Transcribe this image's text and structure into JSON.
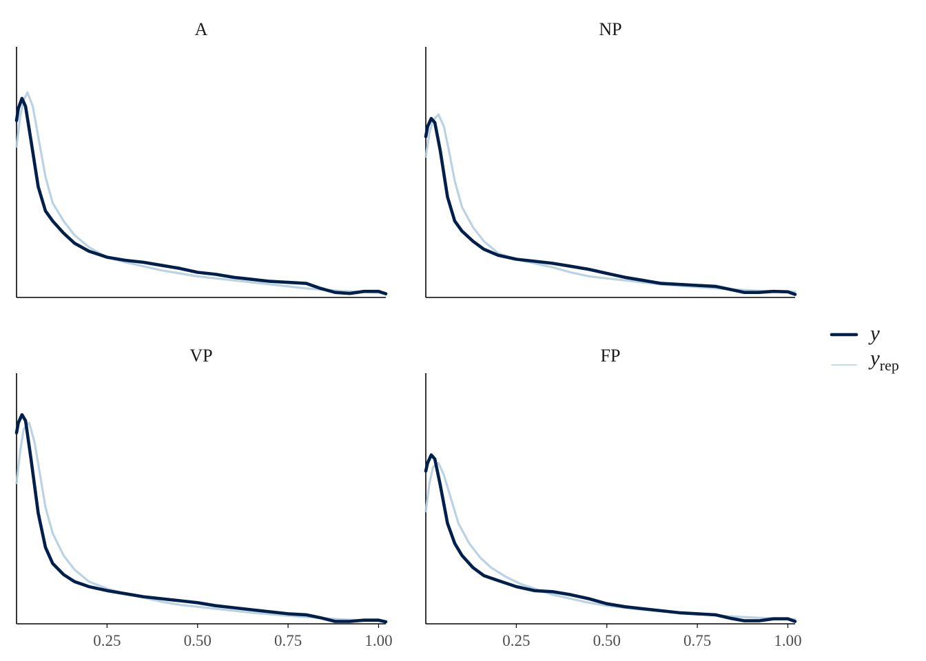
{
  "chart_data": {
    "type": "line",
    "colors": {
      "y": "#011f4b",
      "y_rep": "#b3cde0"
    },
    "legend": {
      "position": "right",
      "entries": [
        {
          "key": "y",
          "label": "y",
          "sub": ""
        },
        {
          "key": "y_rep",
          "label": "y",
          "sub": "rep"
        }
      ]
    },
    "xlim": [
      0,
      1.02
    ],
    "x_ticks": [
      "0.25",
      "0.50",
      "0.75",
      "1.00"
    ],
    "x_tick_values": [
      0.25,
      0.5,
      0.75,
      1.0
    ],
    "panels": [
      {
        "title": "A",
        "ylim": [
          0,
          1
        ],
        "y": [
          [
            0,
            0.88
          ],
          [
            0.005,
            0.94
          ],
          [
            0.015,
            0.99
          ],
          [
            0.025,
            0.95
          ],
          [
            0.04,
            0.78
          ],
          [
            0.06,
            0.55
          ],
          [
            0.08,
            0.43
          ],
          [
            0.1,
            0.38
          ],
          [
            0.13,
            0.32
          ],
          [
            0.16,
            0.27
          ],
          [
            0.2,
            0.23
          ],
          [
            0.25,
            0.2
          ],
          [
            0.3,
            0.185
          ],
          [
            0.35,
            0.175
          ],
          [
            0.4,
            0.16
          ],
          [
            0.45,
            0.145
          ],
          [
            0.5,
            0.125
          ],
          [
            0.55,
            0.115
          ],
          [
            0.6,
            0.1
          ],
          [
            0.65,
            0.09
          ],
          [
            0.7,
            0.08
          ],
          [
            0.75,
            0.075
          ],
          [
            0.8,
            0.07
          ],
          [
            0.84,
            0.045
          ],
          [
            0.88,
            0.025
          ],
          [
            0.92,
            0.02
          ],
          [
            0.96,
            0.03
          ],
          [
            1.0,
            0.03
          ],
          [
            1.02,
            0.018
          ]
        ],
        "y_rep": [
          [
            0,
            0.75
          ],
          [
            0.01,
            0.9
          ],
          [
            0.02,
            0.98
          ],
          [
            0.03,
            1.02
          ],
          [
            0.045,
            0.95
          ],
          [
            0.06,
            0.8
          ],
          [
            0.08,
            0.6
          ],
          [
            0.1,
            0.47
          ],
          [
            0.13,
            0.38
          ],
          [
            0.16,
            0.31
          ],
          [
            0.2,
            0.25
          ],
          [
            0.25,
            0.2
          ],
          [
            0.3,
            0.175
          ],
          [
            0.35,
            0.155
          ],
          [
            0.4,
            0.135
          ],
          [
            0.45,
            0.12
          ],
          [
            0.5,
            0.105
          ],
          [
            0.55,
            0.095
          ],
          [
            0.6,
            0.085
          ],
          [
            0.65,
            0.075
          ],
          [
            0.7,
            0.065
          ],
          [
            0.75,
            0.055
          ],
          [
            0.8,
            0.045
          ],
          [
            0.85,
            0.038
          ],
          [
            0.9,
            0.032
          ],
          [
            0.95,
            0.028
          ],
          [
            1.0,
            0.024
          ],
          [
            1.02,
            0.022
          ]
        ]
      },
      {
        "title": "NP",
        "ylim": [
          0,
          1
        ],
        "y": [
          [
            0,
            0.8
          ],
          [
            0.005,
            0.85
          ],
          [
            0.015,
            0.89
          ],
          [
            0.025,
            0.87
          ],
          [
            0.04,
            0.73
          ],
          [
            0.06,
            0.5
          ],
          [
            0.08,
            0.38
          ],
          [
            0.1,
            0.33
          ],
          [
            0.13,
            0.28
          ],
          [
            0.16,
            0.24
          ],
          [
            0.2,
            0.21
          ],
          [
            0.25,
            0.19
          ],
          [
            0.3,
            0.18
          ],
          [
            0.35,
            0.17
          ],
          [
            0.4,
            0.155
          ],
          [
            0.45,
            0.14
          ],
          [
            0.5,
            0.12
          ],
          [
            0.55,
            0.1
          ],
          [
            0.6,
            0.085
          ],
          [
            0.65,
            0.07
          ],
          [
            0.7,
            0.065
          ],
          [
            0.75,
            0.06
          ],
          [
            0.8,
            0.055
          ],
          [
            0.84,
            0.04
          ],
          [
            0.88,
            0.025
          ],
          [
            0.92,
            0.025
          ],
          [
            0.96,
            0.03
          ],
          [
            1.0,
            0.028
          ],
          [
            1.02,
            0.015
          ]
        ],
        "y_rep": [
          [
            0,
            0.7
          ],
          [
            0.01,
            0.82
          ],
          [
            0.02,
            0.88
          ],
          [
            0.035,
            0.91
          ],
          [
            0.05,
            0.85
          ],
          [
            0.065,
            0.72
          ],
          [
            0.08,
            0.58
          ],
          [
            0.1,
            0.45
          ],
          [
            0.13,
            0.35
          ],
          [
            0.16,
            0.28
          ],
          [
            0.2,
            0.22
          ],
          [
            0.25,
            0.19
          ],
          [
            0.3,
            0.17
          ],
          [
            0.35,
            0.15
          ],
          [
            0.4,
            0.125
          ],
          [
            0.45,
            0.105
          ],
          [
            0.5,
            0.095
          ],
          [
            0.55,
            0.085
          ],
          [
            0.6,
            0.075
          ],
          [
            0.65,
            0.065
          ],
          [
            0.7,
            0.058
          ],
          [
            0.75,
            0.052
          ],
          [
            0.8,
            0.046
          ],
          [
            0.85,
            0.04
          ],
          [
            0.9,
            0.035
          ],
          [
            0.95,
            0.032
          ],
          [
            1.0,
            0.03
          ],
          [
            1.02,
            0.028
          ]
        ]
      },
      {
        "title": "VP",
        "ylim": [
          0,
          1
        ],
        "y": [
          [
            0,
            0.95
          ],
          [
            0.005,
            1.0
          ],
          [
            0.015,
            1.04
          ],
          [
            0.025,
            1.01
          ],
          [
            0.04,
            0.82
          ],
          [
            0.06,
            0.55
          ],
          [
            0.08,
            0.38
          ],
          [
            0.1,
            0.3
          ],
          [
            0.13,
            0.245
          ],
          [
            0.16,
            0.21
          ],
          [
            0.2,
            0.185
          ],
          [
            0.25,
            0.165
          ],
          [
            0.3,
            0.15
          ],
          [
            0.35,
            0.135
          ],
          [
            0.4,
            0.125
          ],
          [
            0.45,
            0.115
          ],
          [
            0.5,
            0.105
          ],
          [
            0.55,
            0.09
          ],
          [
            0.6,
            0.08
          ],
          [
            0.65,
            0.07
          ],
          [
            0.7,
            0.06
          ],
          [
            0.75,
            0.05
          ],
          [
            0.8,
            0.045
          ],
          [
            0.84,
            0.03
          ],
          [
            0.88,
            0.012
          ],
          [
            0.92,
            0.012
          ],
          [
            0.96,
            0.018
          ],
          [
            1.0,
            0.018
          ],
          [
            1.02,
            0.01
          ]
        ],
        "y_rep": [
          [
            0,
            0.7
          ],
          [
            0.01,
            0.86
          ],
          [
            0.02,
            0.97
          ],
          [
            0.035,
            1.0
          ],
          [
            0.05,
            0.9
          ],
          [
            0.065,
            0.74
          ],
          [
            0.08,
            0.58
          ],
          [
            0.1,
            0.45
          ],
          [
            0.13,
            0.34
          ],
          [
            0.16,
            0.27
          ],
          [
            0.2,
            0.21
          ],
          [
            0.25,
            0.175
          ],
          [
            0.3,
            0.15
          ],
          [
            0.35,
            0.13
          ],
          [
            0.4,
            0.11
          ],
          [
            0.45,
            0.095
          ],
          [
            0.5,
            0.085
          ],
          [
            0.55,
            0.075
          ],
          [
            0.6,
            0.065
          ],
          [
            0.65,
            0.055
          ],
          [
            0.7,
            0.048
          ],
          [
            0.75,
            0.04
          ],
          [
            0.8,
            0.034
          ],
          [
            0.85,
            0.028
          ],
          [
            0.9,
            0.022
          ],
          [
            0.95,
            0.018
          ],
          [
            1.0,
            0.015
          ],
          [
            1.02,
            0.013
          ]
        ]
      },
      {
        "title": "FP",
        "ylim": [
          0,
          1
        ],
        "y": [
          [
            0,
            0.76
          ],
          [
            0.005,
            0.8
          ],
          [
            0.015,
            0.84
          ],
          [
            0.025,
            0.82
          ],
          [
            0.04,
            0.69
          ],
          [
            0.06,
            0.5
          ],
          [
            0.08,
            0.4
          ],
          [
            0.1,
            0.34
          ],
          [
            0.13,
            0.28
          ],
          [
            0.16,
            0.24
          ],
          [
            0.2,
            0.215
          ],
          [
            0.25,
            0.185
          ],
          [
            0.3,
            0.165
          ],
          [
            0.35,
            0.16
          ],
          [
            0.4,
            0.145
          ],
          [
            0.45,
            0.125
          ],
          [
            0.5,
            0.1
          ],
          [
            0.55,
            0.085
          ],
          [
            0.6,
            0.075
          ],
          [
            0.65,
            0.065
          ],
          [
            0.7,
            0.055
          ],
          [
            0.75,
            0.05
          ],
          [
            0.8,
            0.045
          ],
          [
            0.84,
            0.028
          ],
          [
            0.88,
            0.015
          ],
          [
            0.92,
            0.015
          ],
          [
            0.96,
            0.025
          ],
          [
            1.0,
            0.025
          ],
          [
            1.02,
            0.012
          ]
        ],
        "y_rep": [
          [
            0,
            0.56
          ],
          [
            0.01,
            0.7
          ],
          [
            0.02,
            0.78
          ],
          [
            0.035,
            0.8
          ],
          [
            0.05,
            0.74
          ],
          [
            0.07,
            0.62
          ],
          [
            0.09,
            0.5
          ],
          [
            0.12,
            0.4
          ],
          [
            0.15,
            0.33
          ],
          [
            0.18,
            0.28
          ],
          [
            0.22,
            0.235
          ],
          [
            0.26,
            0.2
          ],
          [
            0.3,
            0.175
          ],
          [
            0.35,
            0.145
          ],
          [
            0.4,
            0.125
          ],
          [
            0.45,
            0.105
          ],
          [
            0.5,
            0.09
          ],
          [
            0.55,
            0.08
          ],
          [
            0.6,
            0.07
          ],
          [
            0.65,
            0.062
          ],
          [
            0.7,
            0.055
          ],
          [
            0.75,
            0.048
          ],
          [
            0.8,
            0.042
          ],
          [
            0.85,
            0.036
          ],
          [
            0.9,
            0.032
          ],
          [
            0.95,
            0.028
          ],
          [
            1.0,
            0.024
          ],
          [
            1.02,
            0.022
          ]
        ]
      }
    ]
  }
}
